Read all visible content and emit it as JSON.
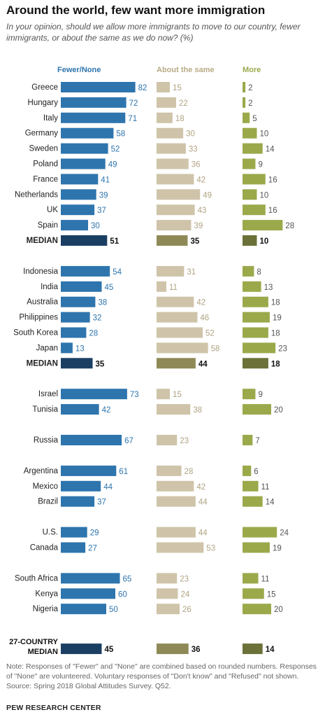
{
  "title": "Around the world, few want more immigration",
  "subtitle": "In your opinion, should we allow more immigrants to move to our country, fewer immigrants, or about the same as we do now? (%)",
  "note": "Note: Responses of \"Fewer\" and \"None\" are combined based on rounded numbers. Responses of \"None\" are volunteered. Voluntary responses of \"Don't know\" and \"Refused\" not shown.",
  "source": "Source: Spring 2018 Global Attitudes Survey. Q52.",
  "brand": "PEW RESEARCH CENTER",
  "chart_data": {
    "type": "bar",
    "orientation": "horizontal",
    "series_names": [
      "Fewer/None",
      "About the same",
      "More"
    ],
    "colors": {
      "fewer": "#2e75ae",
      "same": "#cfc4a9",
      "more": "#9ba94b",
      "fewer_median": "#1b3f63",
      "same_median": "#8f8957",
      "more_median": "#6b7138"
    },
    "groups": [
      {
        "rows": [
          {
            "label": "Greece",
            "fewer": 82,
            "same": 15,
            "more": 2
          },
          {
            "label": "Hungary",
            "fewer": 72,
            "same": 22,
            "more": 2
          },
          {
            "label": "Italy",
            "fewer": 71,
            "same": 18,
            "more": 5
          },
          {
            "label": "Germany",
            "fewer": 58,
            "same": 30,
            "more": 10
          },
          {
            "label": "Sweden",
            "fewer": 52,
            "same": 33,
            "more": 14
          },
          {
            "label": "Poland",
            "fewer": 49,
            "same": 36,
            "more": 9
          },
          {
            "label": "France",
            "fewer": 41,
            "same": 42,
            "more": 16
          },
          {
            "label": "Netherlands",
            "fewer": 39,
            "same": 49,
            "more": 10
          },
          {
            "label": "UK",
            "fewer": 37,
            "same": 43,
            "more": 16
          },
          {
            "label": "Spain",
            "fewer": 30,
            "same": 39,
            "more": 28
          },
          {
            "label": "MEDIAN",
            "fewer": 51,
            "same": 35,
            "more": 10,
            "median": true
          }
        ]
      },
      {
        "rows": [
          {
            "label": "Indonesia",
            "fewer": 54,
            "same": 31,
            "more": 8
          },
          {
            "label": "India",
            "fewer": 45,
            "same": 11,
            "more": 13
          },
          {
            "label": "Australia",
            "fewer": 38,
            "same": 42,
            "more": 18
          },
          {
            "label": "Philippines",
            "fewer": 32,
            "same": 46,
            "more": 19
          },
          {
            "label": "South Korea",
            "fewer": 28,
            "same": 52,
            "more": 18
          },
          {
            "label": "Japan",
            "fewer": 13,
            "same": 58,
            "more": 23
          },
          {
            "label": "MEDIAN",
            "fewer": 35,
            "same": 44,
            "more": 18,
            "median": true
          }
        ]
      },
      {
        "rows": [
          {
            "label": "Israel",
            "fewer": 73,
            "same": 15,
            "more": 9
          },
          {
            "label": "Tunisia",
            "fewer": 42,
            "same": 38,
            "more": 20
          }
        ]
      },
      {
        "rows": [
          {
            "label": "Russia",
            "fewer": 67,
            "same": 23,
            "more": 7
          }
        ]
      },
      {
        "rows": [
          {
            "label": "Argentina",
            "fewer": 61,
            "same": 28,
            "more": 6
          },
          {
            "label": "Mexico",
            "fewer": 44,
            "same": 42,
            "more": 11
          },
          {
            "label": "Brazil",
            "fewer": 37,
            "same": 44,
            "more": 14
          }
        ]
      },
      {
        "rows": [
          {
            "label": "U.S.",
            "fewer": 29,
            "same": 44,
            "more": 24
          },
          {
            "label": "Canada",
            "fewer": 27,
            "same": 53,
            "more": 19
          }
        ]
      },
      {
        "rows": [
          {
            "label": "South Africa",
            "fewer": 65,
            "same": 23,
            "more": 11
          },
          {
            "label": "Kenya",
            "fewer": 60,
            "same": 24,
            "more": 15
          },
          {
            "label": "Nigeria",
            "fewer": 50,
            "same": 26,
            "more": 20
          }
        ]
      },
      {
        "rows": [
          {
            "label": "27-COUNTRY MEDIAN",
            "fewer": 45,
            "same": 36,
            "more": 14,
            "median": true
          }
        ]
      }
    ]
  }
}
